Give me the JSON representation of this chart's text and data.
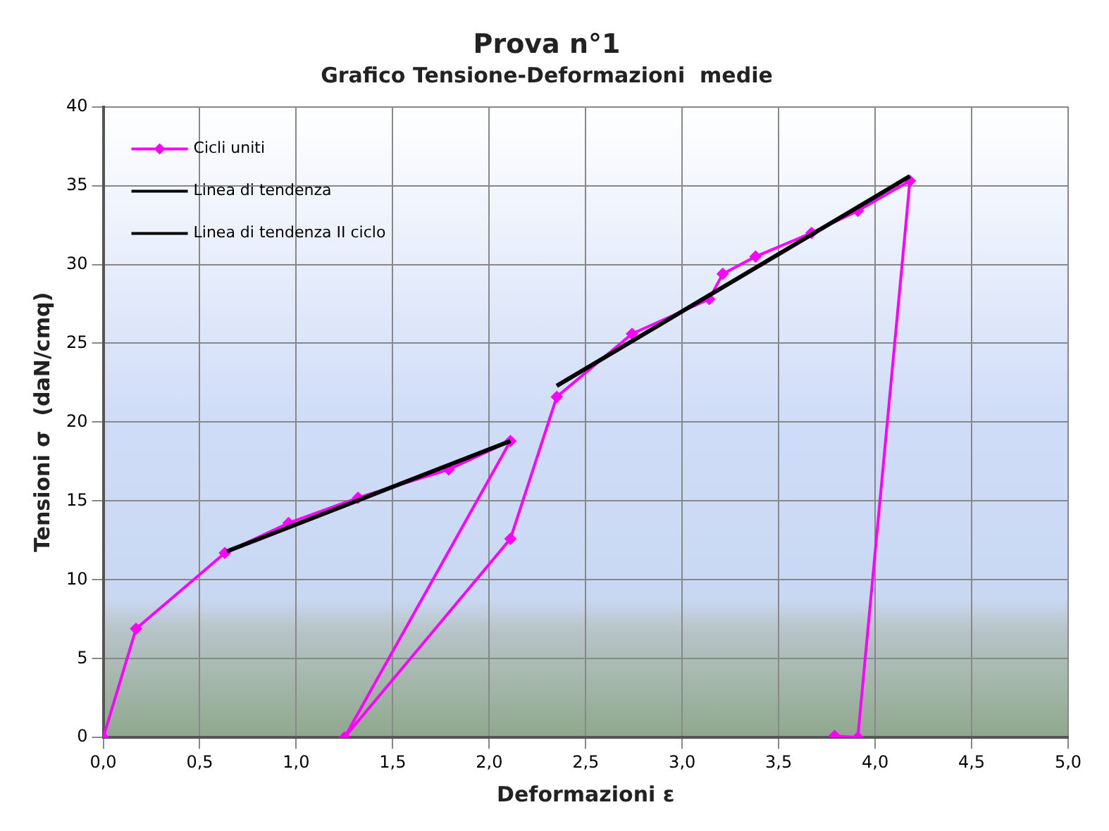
{
  "chart_data": {
    "type": "line",
    "title": "Prova n°1",
    "subtitle": "Grafico Tensione-Deformazioni  medie",
    "xlabel": "Deformazioni ε",
    "ylabel": "Tensioni σ  (daN/cmq)",
    "xlim": [
      0,
      5
    ],
    "xticks": [
      {
        "value": 0,
        "label": "0,0"
      },
      {
        "value": 0.5,
        "label": "0,5"
      },
      {
        "value": 1,
        "label": "1,0"
      },
      {
        "value": 1.5,
        "label": "1,5"
      },
      {
        "value": 2,
        "label": "2,0"
      },
      {
        "value": 2.5,
        "label": "2,5"
      },
      {
        "value": 3,
        "label": "3,0"
      },
      {
        "value": 3.5,
        "label": "3,5"
      },
      {
        "value": 4,
        "label": "4,0"
      },
      {
        "value": 4.5,
        "label": "4,5"
      },
      {
        "value": 5,
        "label": "5,0"
      }
    ],
    "ylim": [
      0,
      40
    ],
    "yticks": [
      0,
      5,
      10,
      15,
      20,
      25,
      30,
      35,
      40
    ],
    "grid": true,
    "legend": "top left",
    "series": [
      {
        "name": "Cicli uniti",
        "color": "#ff00ff",
        "marker": "diamond",
        "x": [
          0,
          0.17,
          0.63,
          0.96,
          1.32,
          1.79,
          2.11,
          1.25,
          2.11,
          2.35,
          2.74,
          3.14,
          3.21,
          3.38,
          3.67,
          3.91,
          4.18,
          3.91,
          3.79
        ],
        "values": [
          0,
          6.9,
          11.7,
          13.6,
          15.2,
          17.0,
          18.8,
          0,
          12.6,
          21.6,
          25.6,
          27.8,
          29.4,
          30.5,
          32.0,
          33.4,
          35.3,
          0,
          0.1
        ]
      },
      {
        "name": "Linea di tendenza",
        "color": "#000000",
        "marker": "none",
        "x": [
          0.64,
          2.11
        ],
        "values": [
          11.8,
          18.8
        ]
      },
      {
        "name": "Linea di tendenza II ciclo",
        "color": "#000000",
        "marker": "none",
        "x": [
          2.35,
          4.18
        ],
        "values": [
          22.3,
          35.6
        ]
      }
    ]
  }
}
